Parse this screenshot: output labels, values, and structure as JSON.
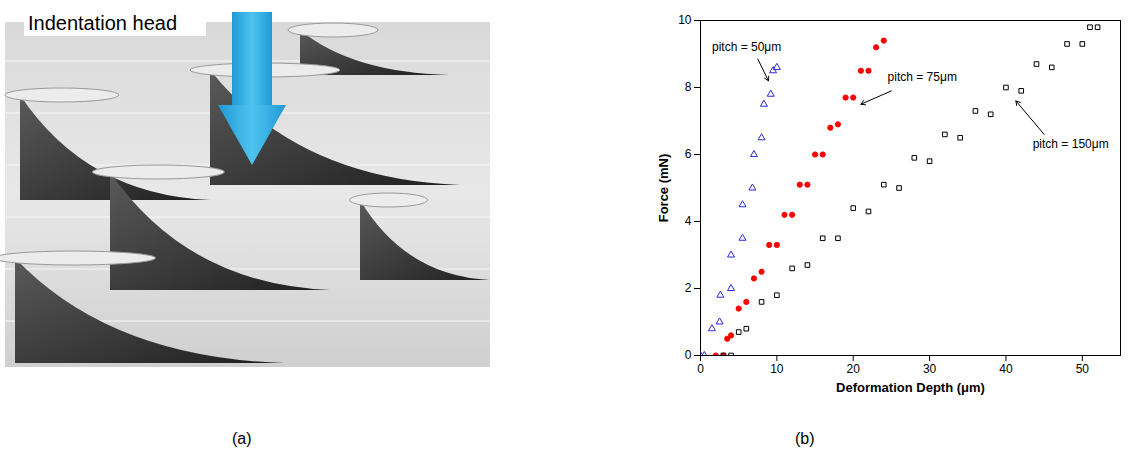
{
  "figure": {
    "panels": [
      {
        "label": "(a)",
        "annotation": "Indentation head"
      },
      {
        "label": "(b)"
      }
    ]
  },
  "chart_data": {
    "type": "scatter",
    "x_label": "Deformation Depth (μm)",
    "y_label": "Force (mN)",
    "xlim": [
      0,
      55
    ],
    "xticks": [
      0,
      10,
      20,
      30,
      40,
      50
    ],
    "ylim": [
      0,
      10
    ],
    "yticks": [
      0,
      2,
      4,
      6,
      8,
      10
    ],
    "grid": false,
    "series": [
      {
        "name": "pitch = 50μm",
        "color": "#2b2bd6",
        "marker": "triangle-open",
        "x": [
          0,
          2.5,
          4,
          5.5,
          6.8,
          8,
          9.2,
          10,
          9.5,
          8.3,
          7,
          5.5,
          4,
          2.6,
          1.5,
          0.5
        ],
        "y": [
          0,
          1,
          2,
          3.5,
          5,
          6.5,
          7.8,
          8.6,
          8.5,
          7.5,
          6,
          4.5,
          3,
          1.8,
          0.8,
          0
        ],
        "label_xy": [
          1.5,
          9.2
        ],
        "arrow_from": [
          7.5,
          8.85
        ],
        "arrow_to": [
          8.9,
          8.2
        ]
      },
      {
        "name": "pitch = 75μm",
        "color": "#ff0000",
        "marker": "circle",
        "x": [
          2,
          4,
          6,
          8,
          10,
          12,
          14,
          16,
          18,
          20,
          22,
          24,
          23,
          21,
          19,
          17,
          15,
          13,
          11,
          9,
          7,
          5,
          3.5,
          3
        ],
        "y": [
          0,
          0.6,
          1.6,
          2.5,
          3.3,
          4.2,
          5.1,
          6,
          6.9,
          7.7,
          8.5,
          9.4,
          9.2,
          8.5,
          7.7,
          6.8,
          6,
          5.1,
          4.2,
          3.3,
          2.3,
          1.4,
          0.5,
          0
        ],
        "label_xy": [
          24.5,
          8.3
        ],
        "arrow_from": [
          25,
          7.9
        ],
        "arrow_to": [
          21,
          7.5
        ]
      },
      {
        "name": "pitch = 150μm",
        "color": "#000000",
        "marker": "square-open",
        "x": [
          3,
          6,
          10,
          14,
          18,
          22,
          26,
          30,
          34,
          38,
          42,
          46,
          50,
          52,
          51,
          48,
          44,
          40,
          36,
          32,
          28,
          24,
          20,
          16,
          12,
          8,
          5,
          4
        ],
        "y": [
          0,
          0.8,
          1.8,
          2.7,
          3.5,
          4.3,
          5,
          5.8,
          6.5,
          7.2,
          7.9,
          8.6,
          9.3,
          9.8,
          9.8,
          9.3,
          8.7,
          8,
          7.3,
          6.6,
          5.9,
          5.1,
          4.4,
          3.5,
          2.6,
          1.6,
          0.7,
          0
        ],
        "label_xy": [
          43.5,
          6.3
        ],
        "arrow_from": [
          45,
          6.6
        ],
        "arrow_to": [
          41.3,
          7.6
        ]
      }
    ]
  }
}
